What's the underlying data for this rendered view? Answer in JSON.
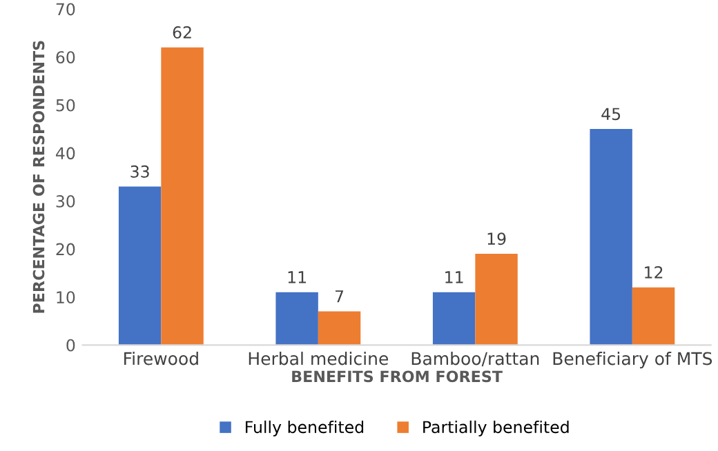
{
  "chart_data": {
    "type": "bar",
    "xlabel": "BENEFITS FROM FOREST",
    "ylabel": "PERCENTAGE OF RESPONDENTS",
    "categories": [
      "Firewood",
      "Herbal medicine",
      "Bamboo/rattan",
      "Beneficiary of MTS"
    ],
    "series": [
      {
        "name": "Fully benefited",
        "color": "#4472c4",
        "values": [
          33,
          11,
          11,
          45
        ]
      },
      {
        "name": "Partially benefited",
        "color": "#ed7d31",
        "values": [
          62,
          7,
          19,
          12
        ]
      }
    ],
    "ylim": [
      0,
      70
    ],
    "yticks": [
      0,
      10,
      20,
      30,
      40,
      50,
      60,
      70
    ],
    "data_labels": true,
    "grid": false,
    "legend": "bottom"
  }
}
